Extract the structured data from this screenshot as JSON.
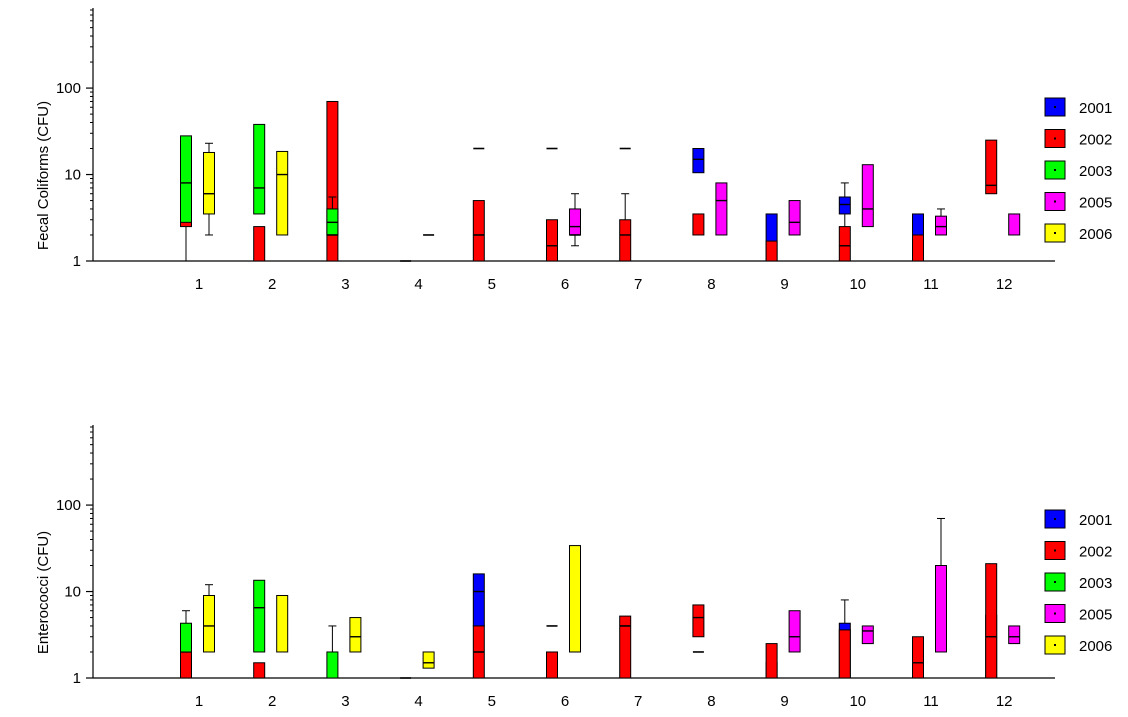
{
  "chart_data": [
    {
      "type": "box",
      "id": "fecal",
      "title": "",
      "xlabel": "",
      "ylabel": "Fecal Coliforms (CFU)",
      "yscale": "log",
      "ylim": [
        1,
        800
      ],
      "categories": [
        "1",
        "2",
        "3",
        "4",
        "5",
        "6",
        "7",
        "8",
        "9",
        "10",
        "11",
        "12"
      ],
      "yticks": [
        {
          "value": 1,
          "label": "1"
        },
        {
          "value": 10,
          "label": "10"
        },
        {
          "value": 100,
          "label": "100"
        }
      ],
      "legend": {
        "placement": "right"
      },
      "series": [
        {
          "name": "2001",
          "color": "#0000ff",
          "boxes": [
            {
              "cat": "8",
              "q1": 10.5,
              "median": 15,
              "q3": 20
            },
            {
              "cat": "9",
              "q1": 1,
              "median": 1,
              "q3": 3.5
            },
            {
              "cat": "10",
              "q1": 3.5,
              "median": 4.5,
              "q3": 5.5,
              "whisker_low": 2,
              "whisker_high": 8
            },
            {
              "cat": "11",
              "q1": 1,
              "median": 1,
              "q3": 3.5
            }
          ]
        },
        {
          "name": "2002",
          "color": "#ff0000",
          "boxes": [
            {
              "cat": "1",
              "q1": 2.5,
              "median": 3,
              "q3": 6,
              "whisker_low": 1,
              "whisker_high": 9
            },
            {
              "cat": "2",
              "q1": 1,
              "median": 1,
              "q3": 2.5
            },
            {
              "cat": "3",
              "q1": 1,
              "median": 1,
              "q3": 70
            },
            {
              "cat": "5",
              "q1": 1,
              "median": 1,
              "q3": 5
            },
            {
              "cat": "6",
              "q1": 1,
              "median": 1.5,
              "q3": 3
            },
            {
              "cat": "7",
              "q1": 1,
              "median": 2,
              "q3": 3,
              "whisker_high": 6
            },
            {
              "cat": "8",
              "q1": 2,
              "median": 2,
              "q3": 3.5
            },
            {
              "cat": "9",
              "q1": 1,
              "median": 1,
              "q3": 1.7
            },
            {
              "cat": "10",
              "q1": 1,
              "median": 1.5,
              "q3": 2.5
            },
            {
              "cat": "11",
              "q1": 1,
              "median": 1,
              "q3": 2
            },
            {
              "cat": "12",
              "q1": 6,
              "median": 7.5,
              "q3": 25
            }
          ]
        },
        {
          "name": "2003",
          "color": "#00ff00",
          "boxes": [
            {
              "cat": "1",
              "q1": 2.8,
              "median": 8,
              "q3": 28
            },
            {
              "cat": "2",
              "q1": 3.5,
              "median": 7,
              "q3": 38
            },
            {
              "cat": "3",
              "q1": 2,
              "median": 2.8,
              "q3": 4,
              "whisker_high": 5.5
            },
            {
              "cat": "3",
              "value": 2,
              "flat": true
            },
            {
              "cat": "4",
              "value": 1,
              "flat": true
            },
            {
              "cat": "5",
              "value": 2,
              "flat": true
            },
            {
              "cat": "5",
              "value": 20,
              "flat": true
            },
            {
              "cat": "6",
              "value": 20,
              "flat": true
            },
            {
              "cat": "7",
              "value": 20,
              "flat": true
            }
          ]
        },
        {
          "name": "2005",
          "color": "#ff00ff",
          "boxes": [
            {
              "cat": "4",
              "value": 2,
              "flat": true
            },
            {
              "cat": "6",
              "q1": 2,
              "median": 2.5,
              "q3": 4,
              "whisker_low": 1.5,
              "whisker_high": 6
            },
            {
              "cat": "6",
              "value": 2,
              "flat": true
            },
            {
              "cat": "8",
              "q1": 2,
              "median": 5,
              "q3": 8
            },
            {
              "cat": "9",
              "q1": 2,
              "median": 2.8,
              "q3": 5
            },
            {
              "cat": "10",
              "q1": 2.5,
              "median": 4,
              "q3": 13
            },
            {
              "cat": "11",
              "q1": 2,
              "median": 2.5,
              "q3": 3.3,
              "whisker_high": 4
            },
            {
              "cat": "12",
              "q1": 2,
              "median": 2,
              "q3": 3.5
            }
          ]
        },
        {
          "name": "2006",
          "color": "#ffff00",
          "boxes": [
            {
              "cat": "1",
              "q1": 3.5,
              "median": 6,
              "q3": 18,
              "whisker_low": 2,
              "whisker_high": 23
            },
            {
              "cat": "2",
              "q1": 2,
              "median": 10,
              "q3": 18.5
            }
          ]
        }
      ]
    },
    {
      "type": "box",
      "id": "entero",
      "title": "",
      "xlabel": "",
      "ylabel": "Enterococci (CFU)",
      "yscale": "log",
      "ylim": [
        1,
        800
      ],
      "categories": [
        "1",
        "2",
        "3",
        "4",
        "5",
        "6",
        "7",
        "8",
        "9",
        "10",
        "11",
        "12"
      ],
      "yticks": [
        {
          "value": 1,
          "label": "1"
        },
        {
          "value": 10,
          "label": "10"
        },
        {
          "value": 100,
          "label": "100"
        }
      ],
      "legend": {
        "placement": "right"
      },
      "series": [
        {
          "name": "2001",
          "color": "#0000ff",
          "boxes": [
            {
              "cat": "5",
              "q1": 4,
              "median": 10,
              "q3": 16
            },
            {
              "cat": "9",
              "q1": 1,
              "median": 1,
              "q3": 1.5
            },
            {
              "cat": "10",
              "q1": 1,
              "median": 1,
              "q3": 4.3,
              "whisker_high": 8
            },
            {
              "cat": "11",
              "q1": 1,
              "median": 1,
              "q3": 2.5
            },
            {
              "cat": "12",
              "q1": 1,
              "median": 1,
              "q3": 5.3
            }
          ]
        },
        {
          "name": "2002",
          "color": "#ff0000",
          "boxes": [
            {
              "cat": "1",
              "q1": 1,
              "median": 2,
              "q3": 3,
              "whisker_high": 6
            },
            {
              "cat": "2",
              "q1": 1,
              "median": 1,
              "q3": 1.5
            },
            {
              "cat": "5",
              "q1": 1,
              "median": 1,
              "q3": 4
            },
            {
              "cat": "6",
              "q1": 1,
              "median": 1,
              "q3": 2
            },
            {
              "cat": "7",
              "q1": 1,
              "median": 1,
              "q3": 5.2
            },
            {
              "cat": "8",
              "q1": 3,
              "median": 5,
              "q3": 7
            },
            {
              "cat": "9",
              "q1": 1,
              "median": 1,
              "q3": 2.5
            },
            {
              "cat": "10",
              "q1": 1,
              "median": 1,
              "q3": 3.6
            },
            {
              "cat": "11",
              "q1": 1,
              "median": 1.5,
              "q3": 3
            },
            {
              "cat": "12",
              "q1": 1,
              "median": 3,
              "q3": 21
            }
          ]
        },
        {
          "name": "2003",
          "color": "#00ff00",
          "boxes": [
            {
              "cat": "1",
              "q1": 2,
              "median": 2,
              "q3": 4.3
            },
            {
              "cat": "2",
              "q1": 2,
              "median": 6.5,
              "q3": 13.5
            },
            {
              "cat": "3",
              "q1": 1,
              "median": 1,
              "q3": 2,
              "whisker_high": 4
            },
            {
              "cat": "4",
              "value": 1,
              "flat": true
            },
            {
              "cat": "5",
              "value": 2,
              "flat": true
            },
            {
              "cat": "6",
              "value": 4,
              "flat": true
            },
            {
              "cat": "7",
              "value": 4,
              "flat": true
            },
            {
              "cat": "8",
              "value": 2,
              "flat": true
            }
          ]
        },
        {
          "name": "2005",
          "color": "#ff00ff",
          "boxes": [
            {
              "cat": "6",
              "q1": 2,
              "median": 3,
              "q3": 4,
              "whisker_high": 7
            },
            {
              "cat": "9",
              "q1": 2,
              "median": 3,
              "q3": 6
            },
            {
              "cat": "10",
              "q1": 2.5,
              "median": 3.5,
              "q3": 4
            },
            {
              "cat": "11",
              "q1": 2,
              "median": 2,
              "q3": 20,
              "whisker_high": 70
            },
            {
              "cat": "12",
              "q1": 2.5,
              "median": 3,
              "q3": 4
            }
          ]
        },
        {
          "name": "2006",
          "color": "#ffff00",
          "boxes": [
            {
              "cat": "1",
              "q1": 2,
              "median": 4,
              "q3": 9,
              "whisker_high": 12
            },
            {
              "cat": "2",
              "q1": 2,
              "median": 2,
              "q3": 9
            },
            {
              "cat": "3",
              "q1": 2,
              "median": 3,
              "q3": 5
            },
            {
              "cat": "4",
              "q1": 1.3,
              "median": 1.5,
              "q3": 2
            },
            {
              "cat": "6",
              "q1": 2,
              "median": 2,
              "q3": 34
            }
          ]
        }
      ]
    }
  ]
}
